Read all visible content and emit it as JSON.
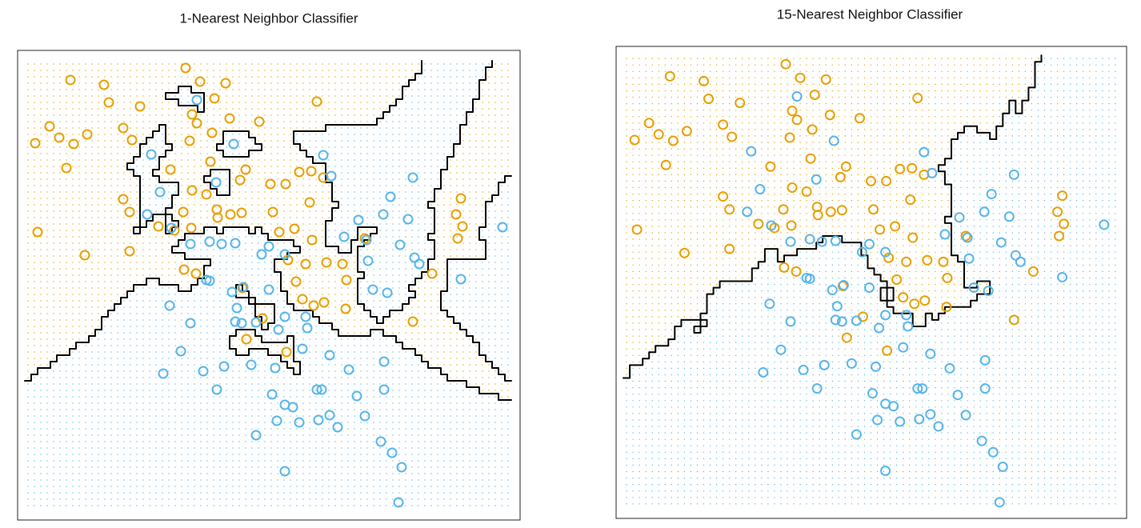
{
  "chart_data": [
    {
      "type": "scatter",
      "title": "1-Nearest Neighbor Classifier",
      "k": 1,
      "xlim": [
        -13,
        615
      ],
      "ylim": [
        -20,
        567
      ],
      "series": [
        {
          "color": "#E69F00",
          "x": [
            197,
            53,
            95,
            215,
            247,
            101,
            140,
            361,
            233,
            205,
            211,
            27,
            74,
            119,
            39,
            9,
            57,
            130,
            202,
            230,
            289,
            252,
            48,
            178,
            272,
            228,
            303,
            322,
            339,
            354,
            369,
            205,
            223,
            119,
            127,
            194,
            236,
            253,
            267,
            306,
            352,
            12,
            163,
            183,
            204,
            71,
            127,
            314,
            333,
            355,
            325,
            347,
            373,
            393,
            398,
            335,
            210,
            195,
            268,
            343,
            357,
            370,
            397,
            505,
            481,
            541,
            535,
            543,
            537,
            273,
            323,
            293,
            421,
            265,
            237
          ],
          "values": [
            545,
            530,
            524,
            528,
            526,
            502,
            497,
            503,
            507,
            487,
            476,
            472,
            462,
            470,
            458,
            451,
            450,
            455,
            454,
            464,
            478,
            482,
            420,
            418,
            418,
            428,
            400,
            400,
            415,
            416,
            408,
            392,
            387,
            381,
            365,
            365,
            368,
            362,
            364,
            365,
            377,
            340,
            347,
            342,
            345,
            311,
            316,
            340,
            344,
            330,
            305,
            300,
            302,
            300,
            280,
            278,
            288,
            293,
            270,
            256,
            248,
            252,
            244,
            288,
            228,
            382,
            362,
            347,
            332,
            206,
            190,
            232,
            332,
            405,
            358
          ]
        },
        {
          "color": "#56B4E9",
          "x": [
            154,
            211,
            257,
            235,
            165,
            149,
            179,
            203,
            227,
            259,
            242,
            292,
            301,
            321,
            223,
            227,
            255,
            269,
            261,
            177,
            203,
            259,
            267,
            301,
            321,
            347,
            313,
            349,
            285,
            191,
            169,
            219,
            245,
            236,
            279,
            309,
            343,
            377,
            401,
            445,
            305,
            321,
            331,
            361,
            367,
            411,
            445,
            339,
            363,
            377,
            421,
            311,
            285,
            387,
            441,
            455,
            467,
            321,
            463,
            431,
            449,
            425,
            395,
            413,
            444,
            453,
            481,
            475,
            465,
            483,
            489,
            541,
            593,
            369,
            379,
            423
          ],
          "values": [
            437,
            505,
            450,
            402,
            390,
            362,
            345,
            325,
            328,
            326,
            325,
            312,
            322,
            312,
            280,
            279,
            265,
            271,
            245,
            248,
            226,
            228,
            226,
            268,
            234,
            234,
            218,
            220,
            227,
            191,
            163,
            166,
            172,
            143,
            174,
            170,
            194,
            186,
            168,
            178,
            137,
            124,
            121,
            143,
            143,
            135,
            143,
            102,
            105,
            111,
            110,
            104,
            86,
            96,
            78,
            64,
            46,
            41,
            2,
            268,
            264,
            304,
            334,
            355,
            362,
            384,
            408,
            356,
            324,
            308,
            300,
            281,
            346,
            436,
            410,
            330
          ]
        }
      ]
    },
    {
      "type": "scatter",
      "title": "15-Nearest Neighbor Classifier",
      "k": 15,
      "xlim": [
        -14,
        621
      ],
      "ylim": [
        -18,
        567
      ],
      "series": [
        {
          "color": "#E69F00",
          "x": [
            197,
            53,
            95,
            215,
            247,
            101,
            140,
            361,
            233,
            205,
            211,
            27,
            74,
            119,
            39,
            9,
            57,
            130,
            202,
            230,
            289,
            252,
            48,
            178,
            272,
            228,
            303,
            322,
            339,
            354,
            369,
            205,
            223,
            119,
            127,
            194,
            236,
            253,
            267,
            306,
            352,
            12,
            163,
            183,
            204,
            71,
            127,
            314,
            333,
            355,
            325,
            347,
            373,
            393,
            398,
            335,
            210,
            195,
            268,
            343,
            357,
            370,
            397,
            505,
            481,
            541,
            535,
            543,
            537,
            273,
            323,
            293,
            421,
            265,
            237
          ],
          "values": [
            545,
            530,
            524,
            528,
            526,
            502,
            497,
            503,
            507,
            487,
            476,
            472,
            462,
            470,
            458,
            451,
            450,
            455,
            454,
            464,
            478,
            482,
            420,
            418,
            418,
            428,
            400,
            400,
            415,
            416,
            408,
            392,
            387,
            381,
            365,
            365,
            368,
            362,
            364,
            365,
            377,
            340,
            347,
            342,
            345,
            311,
            316,
            340,
            344,
            330,
            305,
            300,
            302,
            300,
            280,
            278,
            288,
            293,
            270,
            256,
            248,
            252,
            244,
            288,
            228,
            382,
            362,
            347,
            332,
            206,
            190,
            232,
            332,
            405,
            358
          ]
        },
        {
          "color": "#56B4E9",
          "x": [
            154,
            211,
            257,
            235,
            165,
            149,
            179,
            203,
            227,
            259,
            242,
            292,
            301,
            321,
            223,
            227,
            255,
            269,
            261,
            177,
            203,
            259,
            267,
            301,
            321,
            347,
            313,
            349,
            285,
            191,
            169,
            219,
            245,
            236,
            279,
            309,
            343,
            377,
            401,
            445,
            305,
            321,
            331,
            361,
            367,
            411,
            445,
            339,
            363,
            377,
            421,
            311,
            285,
            387,
            441,
            455,
            467,
            321,
            463,
            431,
            449,
            425,
            395,
            413,
            444,
            453,
            481,
            475,
            465,
            483,
            489,
            541,
            593,
            369,
            379,
            423
          ],
          "values": [
            437,
            505,
            450,
            402,
            390,
            362,
            345,
            325,
            328,
            326,
            325,
            312,
            322,
            312,
            280,
            279,
            265,
            271,
            245,
            248,
            226,
            228,
            226,
            268,
            234,
            234,
            218,
            220,
            227,
            191,
            163,
            166,
            172,
            143,
            174,
            170,
            194,
            186,
            168,
            178,
            137,
            124,
            121,
            143,
            143,
            135,
            143,
            102,
            105,
            111,
            110,
            104,
            86,
            96,
            78,
            64,
            46,
            41,
            2,
            268,
            264,
            304,
            334,
            355,
            362,
            384,
            408,
            356,
            324,
            308,
            300,
            281,
            346,
            436,
            410,
            330
          ]
        }
      ]
    }
  ]
}
